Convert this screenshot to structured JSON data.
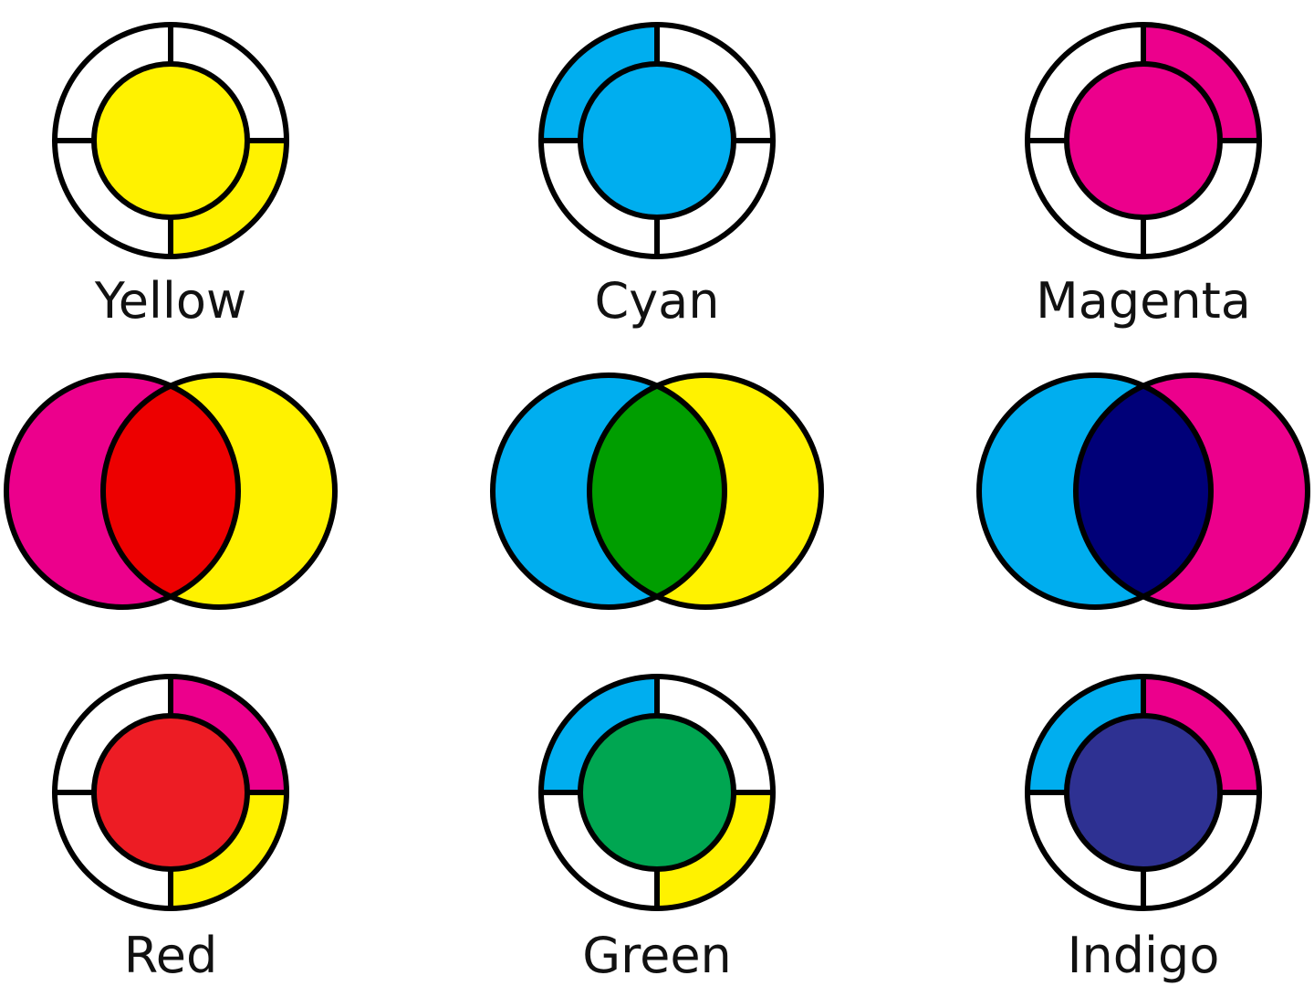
{
  "colors": {
    "yellow": "#FFF200",
    "cyan": "#00AEEF",
    "magenta": "#EC008C",
    "red_overlap": "#ED0000",
    "green_overlap": "#009E00",
    "indigo_overlap": "#000078",
    "red": "#ED1C24",
    "green": "#00A651",
    "indigo": "#2E3192",
    "outline": "#000000",
    "background": "#FFFFFF"
  },
  "primaries": [
    {
      "label": "Yellow",
      "core": "yellow",
      "quadrants": {
        "top_left": "",
        "top_right": "",
        "bottom_right": "yellow",
        "bottom_left": ""
      }
    },
    {
      "label": "Cyan",
      "core": "cyan",
      "quadrants": {
        "top_left": "cyan",
        "top_right": "",
        "bottom_right": "",
        "bottom_left": ""
      }
    },
    {
      "label": "Magenta",
      "core": "magenta",
      "quadrants": {
        "top_left": "",
        "top_right": "magenta",
        "bottom_right": "",
        "bottom_left": ""
      }
    }
  ],
  "mixes": [
    {
      "left": "magenta",
      "right": "yellow",
      "overlap": "red_overlap"
    },
    {
      "left": "cyan",
      "right": "yellow",
      "overlap": "green_overlap"
    },
    {
      "left": "cyan",
      "right": "magenta",
      "overlap": "indigo_overlap"
    }
  ],
  "secondaries": [
    {
      "label": "Red",
      "core": "red",
      "quadrants": {
        "top_left": "",
        "top_right": "magenta",
        "bottom_right": "yellow",
        "bottom_left": ""
      }
    },
    {
      "label": "Green",
      "core": "green",
      "quadrants": {
        "top_left": "cyan",
        "top_right": "",
        "bottom_right": "yellow",
        "bottom_left": ""
      }
    },
    {
      "label": "Indigo",
      "core": "indigo",
      "quadrants": {
        "top_left": "cyan",
        "top_right": "magenta",
        "bottom_right": "",
        "bottom_left": ""
      }
    }
  ]
}
